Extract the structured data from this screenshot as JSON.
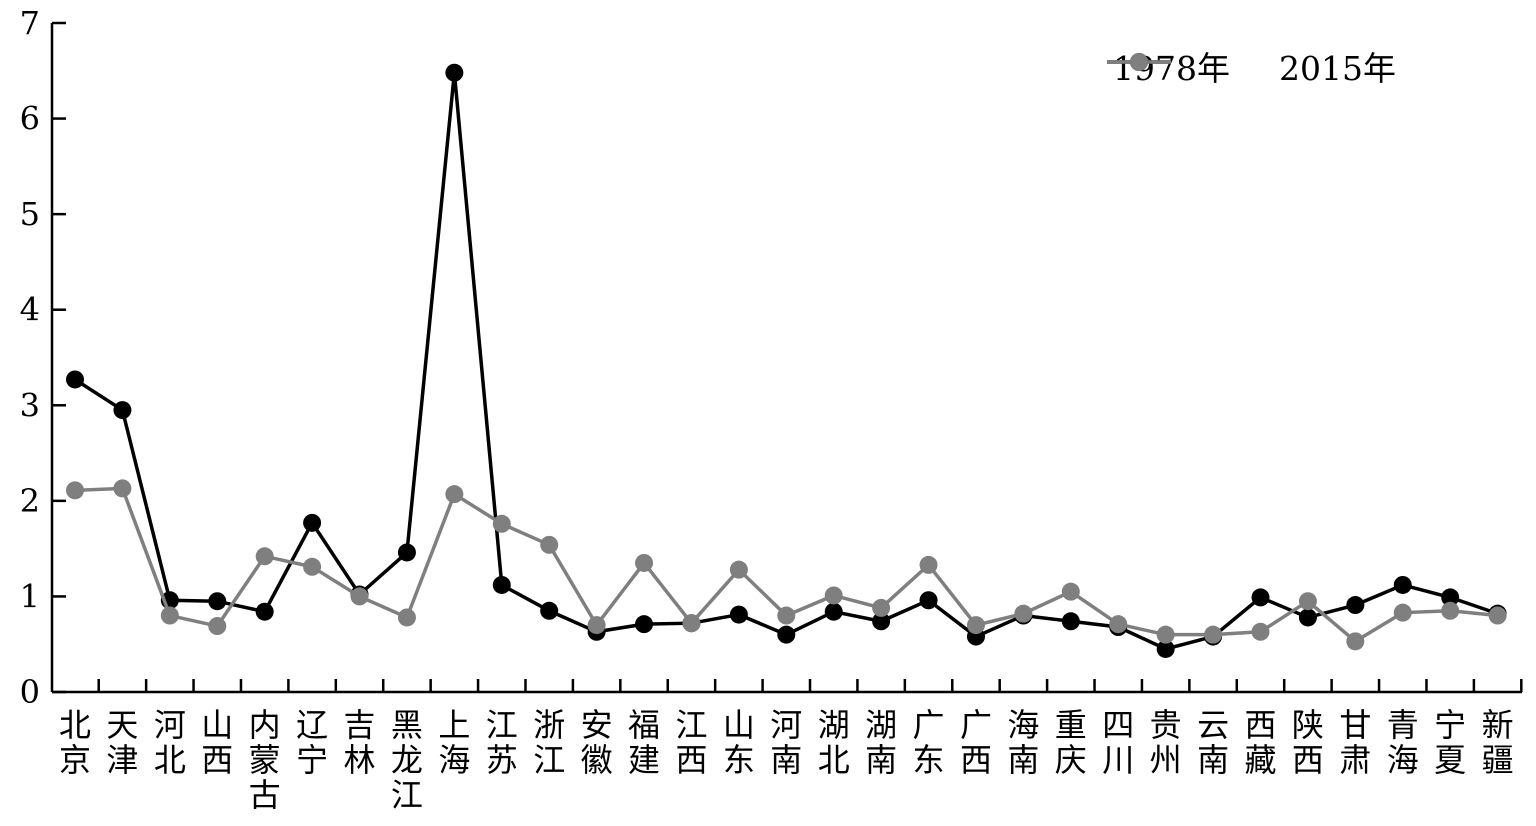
{
  "chart_data": {
    "type": "line",
    "title": "",
    "xlabel": "",
    "ylabel": "",
    "ylim": [
      0,
      7
    ],
    "yticks": [
      0,
      1,
      2,
      3,
      4,
      5,
      6,
      7
    ],
    "grid": false,
    "marker": "circle",
    "legend_position": "top-right",
    "categories": [
      "北京",
      "天津",
      "河北",
      "山西",
      "内蒙古",
      "辽宁",
      "吉林",
      "黑龙江",
      "上海",
      "江苏",
      "浙江",
      "安徽",
      "福建",
      "江西",
      "山东",
      "河南",
      "湖北",
      "湖南",
      "广东",
      "广西",
      "海南",
      "重庆",
      "四川",
      "贵州",
      "云南",
      "西藏",
      "陕西",
      "甘肃",
      "青海",
      "宁夏",
      "新疆"
    ],
    "series": [
      {
        "name": "1978年",
        "color": "#000000",
        "values": [
          3.27,
          2.95,
          0.96,
          0.95,
          0.84,
          1.77,
          1.02,
          1.46,
          6.48,
          1.12,
          0.85,
          0.63,
          0.71,
          0.72,
          0.81,
          0.6,
          0.84,
          0.74,
          0.96,
          0.58,
          0.8,
          0.74,
          0.68,
          0.45,
          0.58,
          0.99,
          0.78,
          0.91,
          1.12,
          0.99,
          0.82
        ]
      },
      {
        "name": "2015年",
        "color": "#7f7f7f",
        "values": [
          2.11,
          2.13,
          0.8,
          0.69,
          1.42,
          1.31,
          1.0,
          0.78,
          2.07,
          1.76,
          1.54,
          0.7,
          1.35,
          0.72,
          1.28,
          0.8,
          1.01,
          0.88,
          1.33,
          0.7,
          0.82,
          1.05,
          0.71,
          0.6,
          0.6,
          0.63,
          0.95,
          0.53,
          0.83,
          0.85,
          0.8
        ]
      }
    ],
    "axis_color": "#000000"
  }
}
